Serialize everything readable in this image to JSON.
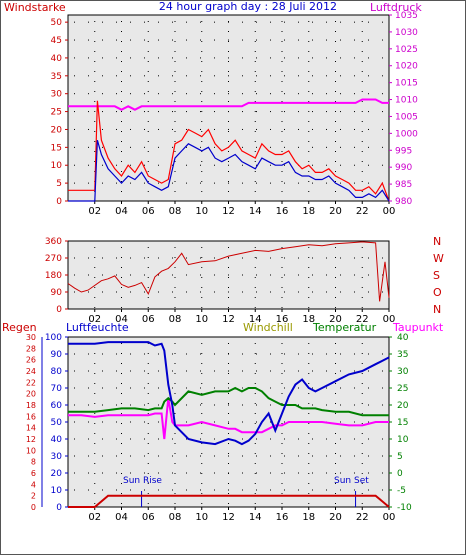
{
  "chart_data": [
    {
      "type": "line",
      "title": "24 hour graph day : 28 Juli 2012",
      "left_axis_label": "Windstarke",
      "right_axis_label": "Luftdruck",
      "left_ticks": [
        "0",
        "5",
        "10",
        "15",
        "20",
        "25",
        "30",
        "35",
        "40",
        "45",
        "50"
      ],
      "right_ticks": [
        "980",
        "985",
        "990",
        "995",
        "1000",
        "1005",
        "1010",
        "1015",
        "1020",
        "1025",
        "1030",
        "1035"
      ],
      "x_ticks": [
        "02",
        "04",
        "06",
        "08",
        "10",
        "12",
        "14",
        "16",
        "18",
        "20",
        "22",
        "00"
      ],
      "ylim_left": [
        0,
        52
      ],
      "ylim_right": [
        980,
        1035
      ],
      "grid": true,
      "colors": {
        "gust": "#ff0000",
        "wind": "#0000cc",
        "pressure": "#ff00ff",
        "left_axis": "#cc0000",
        "right_axis": "#cc00cc"
      },
      "x": [
        0,
        1,
        2,
        2.2,
        2.5,
        3,
        3.5,
        4,
        4.5,
        5,
        5.5,
        6,
        6.5,
        7,
        7.5,
        8,
        8.5,
        9,
        9.5,
        10,
        10.5,
        11,
        11.5,
        12,
        12.5,
        13,
        13.5,
        14,
        14.5,
        15,
        15.5,
        16,
        16.5,
        17,
        17.5,
        18,
        18.5,
        19,
        19.5,
        20,
        20.5,
        21,
        21.5,
        22,
        22.5,
        23,
        23.5,
        24
      ],
      "gust": [
        3,
        3,
        3,
        28,
        17,
        12,
        9,
        7,
        10,
        8,
        11,
        7,
        6,
        5,
        6,
        16,
        17,
        20,
        19,
        18,
        20,
        16,
        14,
        15,
        17,
        14,
        13,
        12,
        16,
        14,
        13,
        13,
        14,
        11,
        9,
        10,
        8,
        8,
        9,
        7,
        6,
        5,
        3,
        3,
        4,
        2,
        5,
        0
      ],
      "wind": [
        0,
        0,
        0,
        17,
        13,
        9,
        7,
        5,
        7,
        6,
        8,
        5,
        4,
        3,
        4,
        12,
        14,
        16,
        15,
        14,
        15,
        12,
        11,
        12,
        13,
        11,
        10,
        9,
        12,
        11,
        10,
        10,
        11,
        8,
        7,
        7,
        6,
        6,
        7,
        5,
        4,
        3,
        1,
        1,
        2,
        1,
        3,
        0
      ],
      "pressure": [
        1008,
        1008,
        1008,
        1008,
        1008,
        1008,
        1008,
        1007,
        1008,
        1007,
        1008,
        1008,
        1008,
        1008,
        1008,
        1008,
        1008,
        1008,
        1008,
        1008,
        1008,
        1008,
        1008,
        1008,
        1008,
        1008,
        1009,
        1009,
        1009,
        1009,
        1009,
        1009,
        1009,
        1009,
        1009,
        1009,
        1009,
        1009,
        1009,
        1009,
        1009,
        1009,
        1009,
        1010,
        1010,
        1010,
        1009,
        1009
      ]
    },
    {
      "type": "line",
      "right_axis_labels": [
        "N",
        "W",
        "S",
        "O",
        "N"
      ],
      "left_ticks": [
        "0",
        "90",
        "180",
        "270",
        "360"
      ],
      "x_ticks": [
        "02",
        "04",
        "06",
        "08",
        "10",
        "12",
        "14",
        "16",
        "18",
        "20",
        "22",
        "00"
      ],
      "ylim": [
        0,
        360
      ],
      "grid": true,
      "colors": {
        "direction": "#cc0000",
        "axis": "#cc0000"
      },
      "x": [
        0,
        0.5,
        1,
        1.5,
        2,
        2.5,
        3,
        3.5,
        4,
        4.5,
        5,
        5.5,
        6,
        6.5,
        7,
        7.5,
        8,
        8.5,
        9,
        10,
        11,
        12,
        13,
        14,
        15,
        16,
        17,
        18,
        19,
        20,
        21,
        22,
        23,
        23.3,
        23.7,
        24
      ],
      "direction": [
        135,
        110,
        90,
        100,
        125,
        150,
        160,
        175,
        130,
        115,
        125,
        140,
        80,
        170,
        200,
        215,
        250,
        295,
        235,
        250,
        255,
        280,
        295,
        310,
        305,
        320,
        330,
        340,
        335,
        345,
        350,
        355,
        350,
        40,
        250,
        60
      ]
    },
    {
      "type": "line",
      "labels": {
        "rain": "Regen",
        "humidity": "Luftfeuchte",
        "windchill": "Windchill",
        "temperature": "Temperatur",
        "dewpoint": "Taupunkt"
      },
      "annotations": [
        "Sun Rise",
        "Sun Set"
      ],
      "rain_ticks": [
        "0",
        "2",
        "4",
        "6",
        "8",
        "10",
        "12",
        "14",
        "16",
        "18",
        "20",
        "22",
        "24",
        "26",
        "28",
        "30"
      ],
      "humidity_ticks": [
        "0",
        "10",
        "20",
        "30",
        "40",
        "50",
        "60",
        "70",
        "80",
        "90",
        "100"
      ],
      "temp_ticks": [
        "-10",
        "-5",
        "0",
        "5",
        "10",
        "15",
        "20",
        "25",
        "30",
        "35",
        "40"
      ],
      "x_ticks": [
        "02",
        "04",
        "06",
        "08",
        "10",
        "12",
        "14",
        "16",
        "18",
        "20",
        "22",
        "00"
      ],
      "ylim_humidity": [
        0,
        100
      ],
      "ylim_temp": [
        -10,
        40
      ],
      "grid": true,
      "colors": {
        "rain": "#cc0000",
        "humidity": "#0000cc",
        "windchill": "#ff00ff",
        "temperature": "#008000",
        "dewpoint": "#ff00ff",
        "sun": "#0000cc"
      },
      "x": [
        0,
        1,
        2,
        3,
        4,
        5,
        6,
        6.5,
        7,
        7.2,
        7.5,
        7.8,
        8,
        9,
        10,
        11,
        12,
        12.5,
        13,
        13.5,
        14,
        14.5,
        15,
        15.5,
        16,
        16.5,
        17,
        17.5,
        18,
        18.5,
        19,
        20,
        21,
        22,
        23,
        24
      ],
      "humidity": [
        96,
        96,
        96,
        97,
        97,
        97,
        97,
        95,
        96,
        92,
        72,
        60,
        48,
        40,
        38,
        37,
        40,
        39,
        37,
        39,
        43,
        50,
        55,
        45,
        55,
        65,
        72,
        75,
        70,
        68,
        70,
        74,
        78,
        80,
        84,
        88
      ],
      "temperature": [
        18,
        18,
        18,
        18.5,
        19,
        19,
        18.5,
        19,
        19,
        21,
        22,
        21,
        20,
        24,
        23,
        24,
        24,
        25,
        24,
        25,
        25,
        24,
        22,
        21,
        20,
        20,
        20,
        19,
        19,
        19,
        18.5,
        18,
        18,
        17,
        17,
        17
      ],
      "dewpoint": [
        17,
        17,
        16.5,
        17,
        17,
        17,
        17,
        17.5,
        17.5,
        10,
        22,
        15,
        14,
        14,
        15,
        14,
        13,
        13,
        12,
        12,
        12,
        12,
        13,
        14,
        14,
        15,
        15,
        15,
        15,
        15,
        15,
        14.5,
        14,
        14,
        15,
        15
      ],
      "rain": [
        0,
        0,
        0,
        2,
        2,
        2,
        2,
        2,
        2,
        2,
        2,
        2,
        2,
        2,
        2,
        2,
        2,
        2,
        2,
        2,
        2,
        2,
        2,
        2,
        2,
        2,
        2,
        2,
        2,
        2,
        2,
        2,
        2,
        2,
        2,
        0
      ],
      "sun_rise_hour": 5.5,
      "sun_set_hour": 21.5
    }
  ]
}
